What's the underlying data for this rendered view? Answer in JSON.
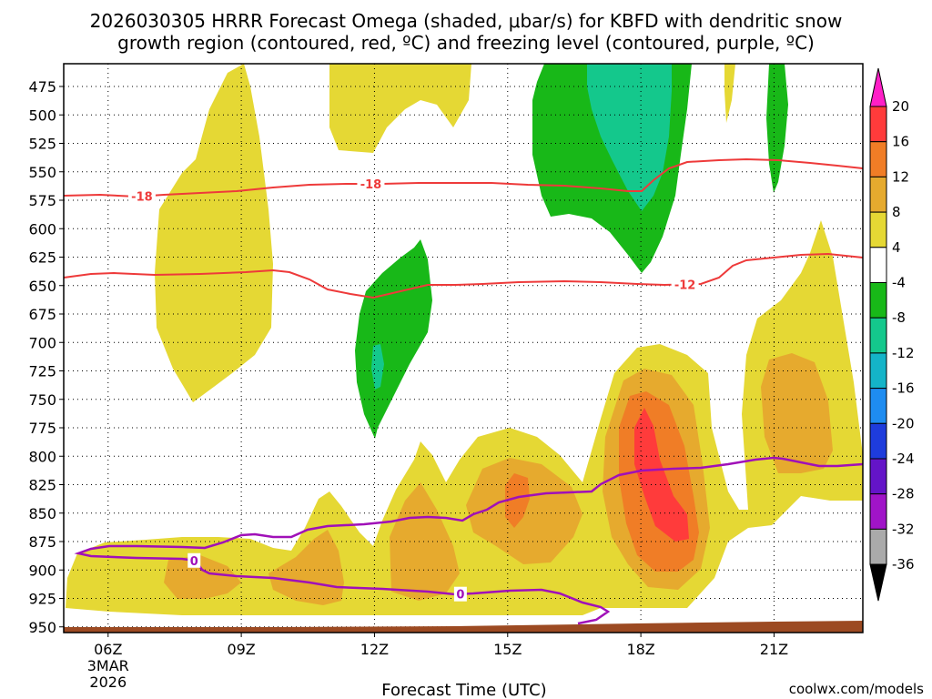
{
  "chart_data": {
    "type": "contour-timeheight",
    "title_line1": "2026030305 HRRR Forecast Omega (shaded, μbar/s) for KBFD with dendritic snow",
    "title_line2": "growth region (contoured, red, ºC) and freezing level (contoured, purple, ºC)",
    "xlabel": "Forecast Time (UTC)",
    "source": "coolwx.com/models",
    "x_ticks": [
      {
        "hour": 6,
        "label": "06Z",
        "sub1": "3MAR",
        "sub2": "2026"
      },
      {
        "hour": 9,
        "label": "09Z"
      },
      {
        "hour": 12,
        "label": "12Z"
      },
      {
        "hour": 15,
        "label": "15Z"
      },
      {
        "hour": 18,
        "label": "18Z"
      },
      {
        "hour": 21,
        "label": "21Z"
      }
    ],
    "x_range_hours": [
      5.0,
      23.0
    ],
    "y_ticks": [
      475,
      500,
      525,
      550,
      575,
      600,
      625,
      650,
      675,
      700,
      725,
      750,
      775,
      800,
      825,
      850,
      875,
      900,
      925,
      950
    ],
    "y_range_mb": [
      455,
      955
    ],
    "colorbar": {
      "levels": [
        "20",
        "16",
        "12",
        "8",
        "4",
        "-4",
        "-8",
        "-12",
        "-16",
        "-20",
        "-24",
        "-28",
        "-32",
        "-36"
      ],
      "colors": [
        "#ff1fc7",
        "#ff3b3b",
        "#f07d26",
        "#e6aa2e",
        "#e5d834",
        "#ffffff",
        "#18b818",
        "#14c88c",
        "#14b4c8",
        "#1e8cf0",
        "#1e3cdc",
        "#6414c8",
        "#a014c8",
        "#aaaaaa",
        "#000000"
      ]
    },
    "temperature_contours": [
      {
        "value": "-18",
        "color": "#ee3a3a",
        "label_hours": [
          6.75,
          11.9
        ]
      },
      {
        "value": "-12",
        "color": "#ee3a3a",
        "label_hours": [
          19.0
        ]
      }
    ],
    "freezing_level_contours": [
      {
        "value": "0",
        "color": "#a010b8",
        "label_hours": [
          7.95,
          13.95
        ]
      }
    ]
  }
}
